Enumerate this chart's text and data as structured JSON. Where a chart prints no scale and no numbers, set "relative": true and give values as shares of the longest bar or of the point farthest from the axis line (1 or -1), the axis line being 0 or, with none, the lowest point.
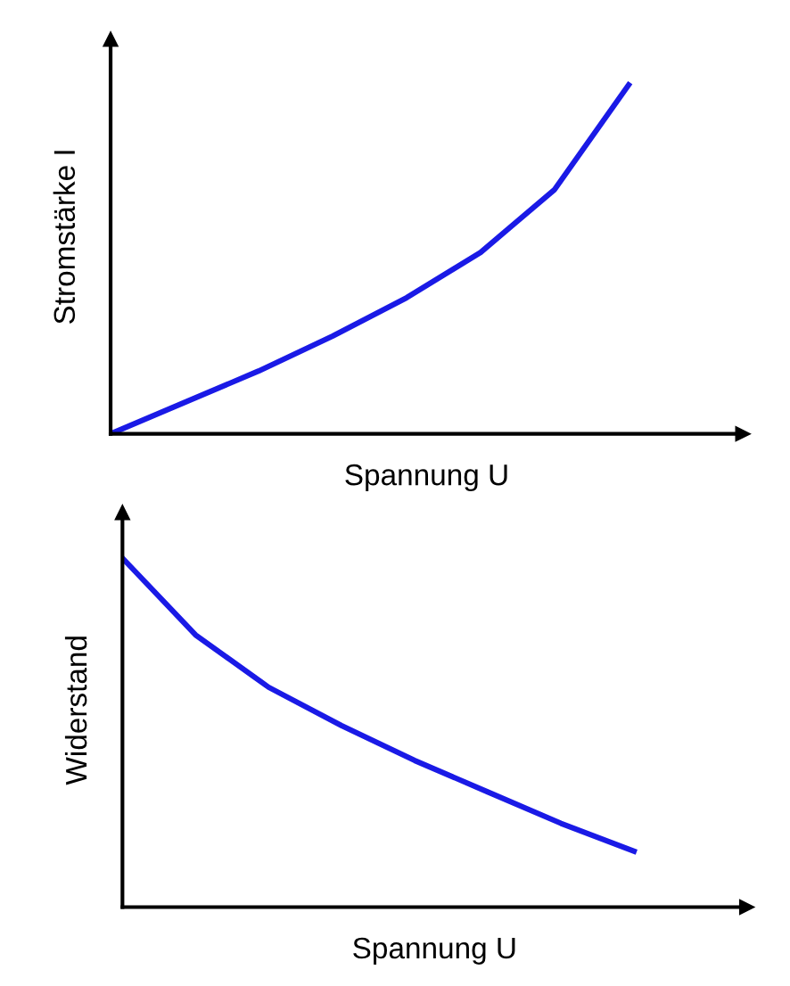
{
  "chart_data": [
    {
      "type": "line",
      "relative": true,
      "xlabel": "Spannung U",
      "ylabel": "Stromstärke I",
      "categories": [
        null,
        null,
        null,
        null,
        null,
        null,
        null,
        null
      ],
      "series": [
        {
          "color": "#1a1ae6",
          "values": [
            0,
            0.09,
            0.18,
            0.28,
            0.39,
            0.52,
            0.7,
            1
          ]
        }
      ],
      "grid": false,
      "legend": false,
      "tick_labels": false
    },
    {
      "type": "line",
      "relative": true,
      "xlabel": "Spannung U",
      "ylabel": "Widerstand",
      "categories": [
        null,
        null,
        null,
        null,
        null,
        null,
        null,
        null
      ],
      "series": [
        {
          "color": "#1a1ae6",
          "values": [
            1,
            0.78,
            0.63,
            0.52,
            0.42,
            0.33,
            0.24,
            0.16
          ]
        }
      ],
      "grid": false,
      "legend": false,
      "tick_labels": false
    }
  ]
}
